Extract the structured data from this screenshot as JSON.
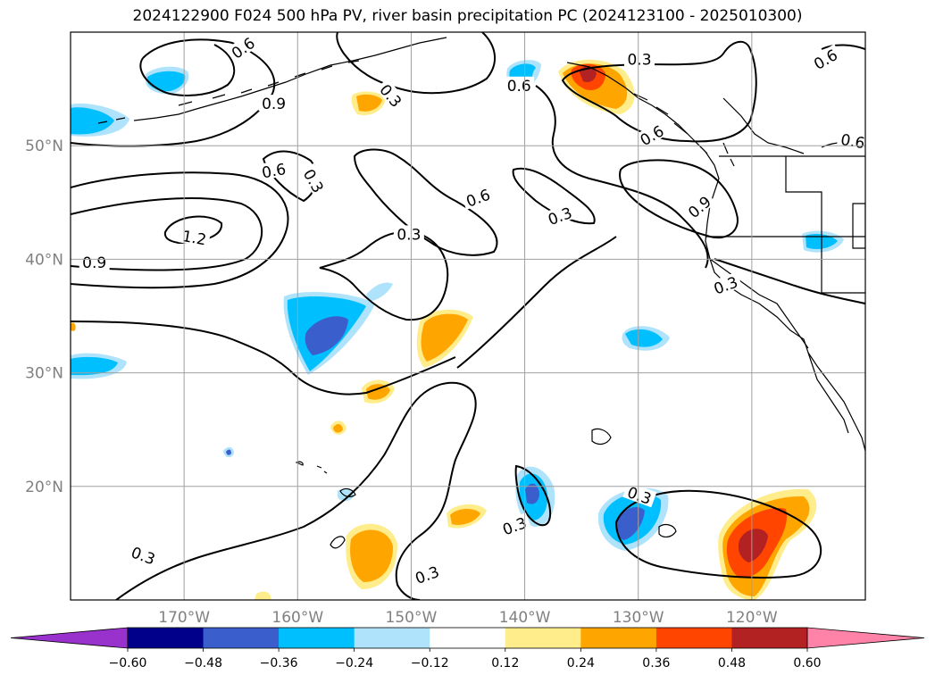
{
  "title": "2024122900 F024 500 hPa PV, river basin precipitation PC (2024123100 - 2025010300)",
  "map": {
    "projection": "PlateCarree",
    "lon_range": [
      -180,
      -110
    ],
    "lat_range": [
      10,
      60
    ],
    "lat_ticks": [
      {
        "value": 20,
        "label": "20°N"
      },
      {
        "value": 30,
        "label": "30°N"
      },
      {
        "value": 40,
        "label": "40°N"
      },
      {
        "value": 50,
        "label": "50°N"
      }
    ],
    "lon_ticks": [
      {
        "value": -170,
        "label": "170°W"
      },
      {
        "value": -160,
        "label": "160°W"
      },
      {
        "value": -150,
        "label": "150°W"
      },
      {
        "value": -140,
        "label": "140°W"
      },
      {
        "value": -130,
        "label": "130°W"
      },
      {
        "value": -120,
        "label": "120°W"
      }
    ],
    "gridlines": true,
    "coastlines": true,
    "pv_contour_labels": [
      {
        "text": "0.6",
        "lon": -164.8,
        "lat": 58.6,
        "angle": 35
      },
      {
        "text": "0.9",
        "lon": -162.1,
        "lat": 53.7,
        "angle": 0
      },
      {
        "text": "0.6",
        "lon": -162.1,
        "lat": 47.8,
        "angle": 10
      },
      {
        "text": "1.2",
        "lon": -169.1,
        "lat": 41.9,
        "angle": -10
      },
      {
        "text": "0.9",
        "lon": -177.9,
        "lat": 39.7,
        "angle": 0
      },
      {
        "text": "0.3",
        "lon": -158.6,
        "lat": 46.9,
        "angle": -60
      },
      {
        "text": "0.3",
        "lon": -151.8,
        "lat": 54.4,
        "angle": -50
      },
      {
        "text": "0.6",
        "lon": -140.5,
        "lat": 55.3,
        "angle": 0
      },
      {
        "text": "0.3",
        "lon": -129.9,
        "lat": 57.6,
        "angle": 0
      },
      {
        "text": "0.6",
        "lon": -113.5,
        "lat": 57.6,
        "angle": 30
      },
      {
        "text": "0.6",
        "lon": -111.1,
        "lat": 50.4,
        "angle": -10
      },
      {
        "text": "0.6",
        "lon": -128.8,
        "lat": 50.9,
        "angle": 30
      },
      {
        "text": "0.9",
        "lon": -124.6,
        "lat": 44.6,
        "angle": 40
      },
      {
        "text": "0.6",
        "lon": -144.1,
        "lat": 45.4,
        "angle": 20
      },
      {
        "text": "0.3",
        "lon": -136.9,
        "lat": 43.8,
        "angle": 20
      },
      {
        "text": "0.3",
        "lon": -150.2,
        "lat": 42.2,
        "angle": 0
      },
      {
        "text": "0.3",
        "lon": -122.3,
        "lat": 37.7,
        "angle": 20
      },
      {
        "text": "0.3",
        "lon": -129.9,
        "lat": 19.2,
        "angle": -20
      },
      {
        "text": "0.3",
        "lon": -140.9,
        "lat": 16.5,
        "angle": 20
      },
      {
        "text": "0.3",
        "lon": -173.6,
        "lat": 13.9,
        "angle": -20
      },
      {
        "text": "0.3",
        "lon": -148.6,
        "lat": 12.2,
        "angle": 20
      }
    ]
  },
  "colorbar": {
    "tick_labels": [
      "−0.60",
      "−0.48",
      "−0.36",
      "−0.24",
      "−0.12",
      "0.12",
      "0.24",
      "0.36",
      "0.48",
      "0.60"
    ],
    "boundaries": [
      -0.6,
      -0.48,
      -0.36,
      -0.24,
      -0.12,
      0.12,
      0.24,
      0.36,
      0.48,
      0.6
    ],
    "colors": [
      "#9932cc",
      "#00008b",
      "#3a5fcd",
      "#00bfff",
      "#aee3fb",
      "#ffffff",
      "#ffec8b",
      "#ffa500",
      "#ff4500",
      "#b22222",
      "#ff83a8"
    ],
    "extend": "both"
  }
}
